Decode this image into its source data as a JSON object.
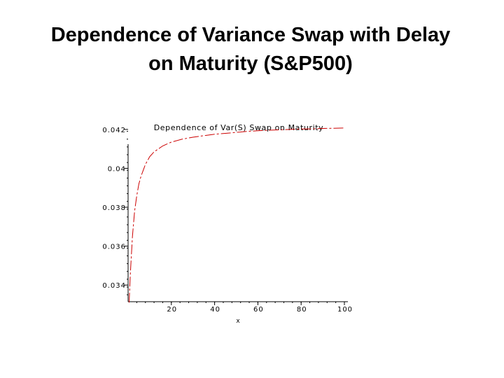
{
  "slide": {
    "title_line1": "Dependence of Variance Swap with Delay",
    "title_line2": "on Maturity (S&P500)"
  },
  "chart_data": {
    "type": "line",
    "title": "Dependence of Var(S) Swap on Maturity",
    "xlabel": "x",
    "ylabel": "",
    "xlim": [
      0,
      100
    ],
    "ylim": [
      0.033,
      0.0425
    ],
    "x_ticks": [
      20,
      40,
      60,
      80,
      100
    ],
    "y_ticks": [
      0.034,
      0.036,
      0.038,
      0.04,
      0.042
    ],
    "y_tick_labels": [
      "0.034",
      "0.036",
      "0.038",
      "0.04",
      "0.042"
    ],
    "grid": false,
    "series": [
      {
        "color": "#cc0000",
        "style": "dashed",
        "x": [
          0.5,
          1,
          2,
          3,
          4,
          5,
          6,
          7,
          8,
          10,
          12,
          14,
          16,
          18,
          20,
          25,
          30,
          35,
          40,
          45,
          50,
          55,
          60,
          65,
          70,
          75,
          80,
          85,
          90,
          95,
          100
        ],
        "y": [
          0.0331,
          0.0345,
          0.0365,
          0.0378,
          0.0386,
          0.0392,
          0.0396,
          0.0399,
          0.0402,
          0.0406,
          0.04085,
          0.041,
          0.04115,
          0.04125,
          0.04135,
          0.0415,
          0.0416,
          0.04168,
          0.04175,
          0.0418,
          0.04185,
          0.0419,
          0.04193,
          0.04196,
          0.04198,
          0.042,
          0.04202,
          0.04203,
          0.04205,
          0.04206,
          0.04207
        ]
      }
    ]
  }
}
